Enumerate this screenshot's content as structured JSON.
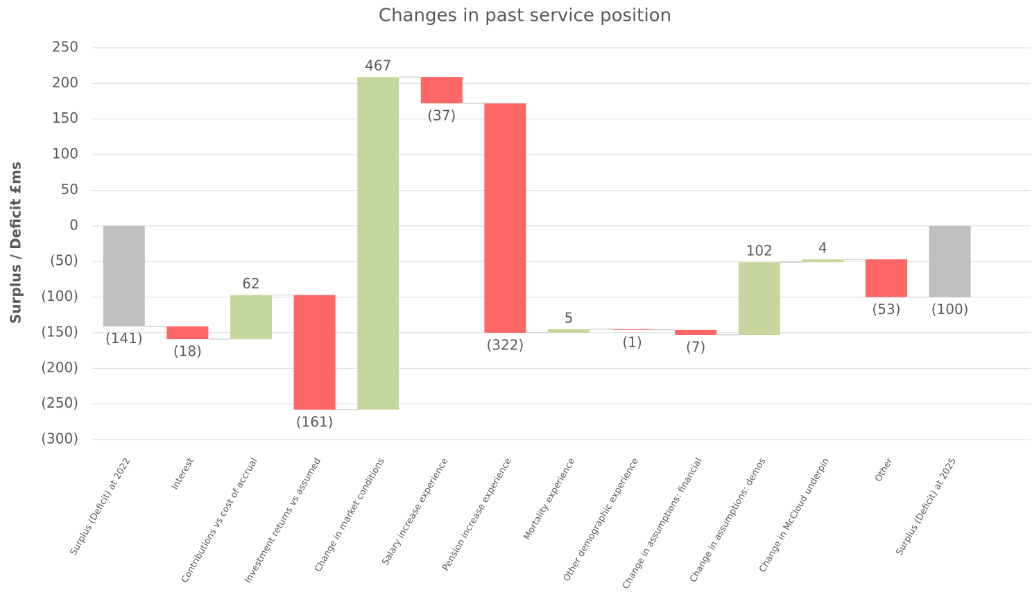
{
  "chart_data": {
    "type": "waterfall",
    "title": "Changes in past service position",
    "y_label": "Surplus / Deficit £ms",
    "categories": [
      "Surplus (Deficit) at 2022",
      "Interest",
      "Contributions vs cost of accrual",
      "Investment returns vs assumed",
      "Change in market conditions",
      "Salary increase experience",
      "Pension increase experience",
      "Mortality experience",
      "Other demographic experience",
      "Change in assumptions: financial",
      "Change in assumptions: demos",
      "Change in McCloud underpin",
      "Other",
      "Surplus (Deficit) at 2025"
    ],
    "values": [
      -141,
      -18,
      62,
      -161,
      467,
      -37,
      -322,
      5,
      -1,
      -7,
      102,
      4,
      -53,
      -100
    ],
    "value_labels": [
      "(141)",
      "(18)",
      "62",
      "(161)",
      "467",
      "(37)",
      "(322)",
      "5",
      "(1)",
      "(7)",
      "102",
      "4",
      "(53)",
      "(100)"
    ],
    "total_indices": [
      0,
      13
    ],
    "colors": {
      "total": "#bfbfbf",
      "increase": "#c5d79c",
      "decrease": "#ff6666"
    },
    "ylim": [
      -300,
      250
    ],
    "yticks": [
      250,
      200,
      150,
      100,
      50,
      0,
      {
        "value": -50,
        "label": "(50)"
      },
      {
        "value": -100,
        "label": "(100)"
      },
      {
        "value": -150,
        "label": "(150)"
      },
      {
        "value": -200,
        "label": "(200)"
      },
      {
        "value": -250,
        "label": "(250)"
      },
      {
        "value": -300,
        "label": "(300)"
      }
    ],
    "grid": true
  }
}
